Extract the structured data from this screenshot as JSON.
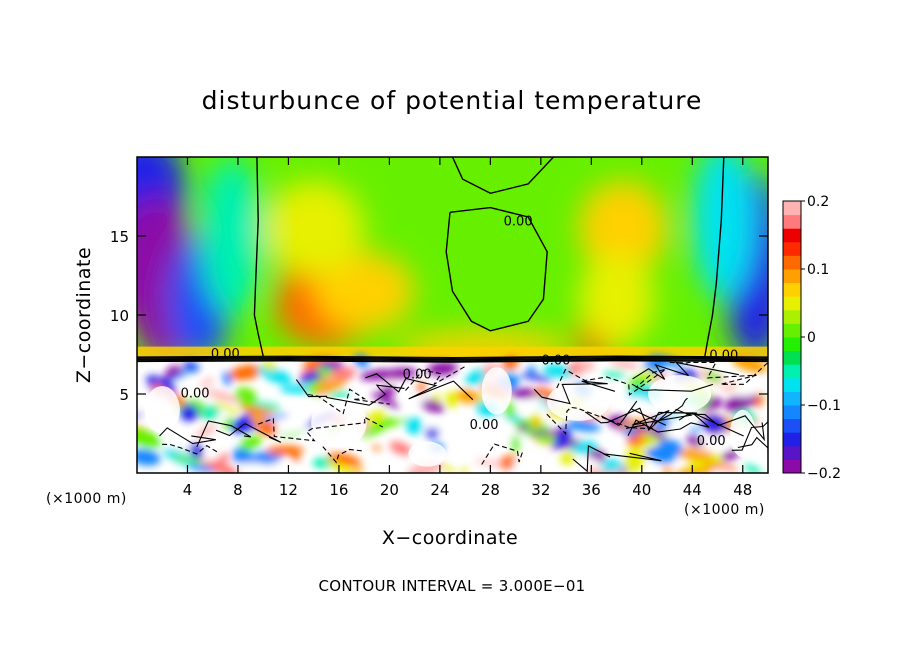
{
  "chart_data": {
    "type": "heatmap",
    "title": "disturbunce of potential temperature",
    "xlabel": "X−coordinate",
    "ylabel": "Z−coordinate",
    "x_unit_left": "(×1000 m)",
    "x_unit_right": "(×1000 m)",
    "footer": "CONTOUR INTERVAL = 3.000E−01",
    "xlim": [
      0,
      50
    ],
    "ylim": [
      0,
      20
    ],
    "x_ticks": [
      4,
      8,
      12,
      16,
      20,
      24,
      28,
      32,
      36,
      40,
      44,
      48
    ],
    "x_tick_labels": [
      "4",
      "8",
      "12",
      "16",
      "20",
      "24",
      "28",
      "32",
      "36",
      "40",
      "44",
      "48"
    ],
    "y_ticks": [
      5,
      10,
      15
    ],
    "y_tick_labels": [
      "5",
      "10",
      "15"
    ],
    "colorbar": {
      "min": -0.2,
      "max": 0.2,
      "ticks": [
        0.2,
        0.1,
        0,
        -0.1,
        -0.2
      ],
      "tick_labels": [
        "0.2",
        "0.1",
        "0",
        "−0.1",
        "−0.2"
      ],
      "colors": [
        "#8c0aa8",
        "#5a14c8",
        "#2020e6",
        "#1a50f5",
        "#1486ff",
        "#10b4ff",
        "#00e2f0",
        "#00f0b0",
        "#00e050",
        "#22f000",
        "#66f000",
        "#aaf000",
        "#e6f000",
        "#ffd000",
        "#ffa000",
        "#ff6a00",
        "#ff2a00",
        "#ee0000",
        "#ff7a7a",
        "#ffb2b2"
      ]
    },
    "contour_labels": [
      {
        "text": "0.00",
        "x": 30.2,
        "z": 15.9
      },
      {
        "text": "0.00",
        "x": 7.0,
        "z": 7.5
      },
      {
        "text": "0.00",
        "x": 22.2,
        "z": 6.2
      },
      {
        "text": "0.00",
        "x": 33.2,
        "z": 7.1
      },
      {
        "text": "0.00",
        "x": 27.5,
        "z": 3.0
      },
      {
        "text": "0.00",
        "x": 46.5,
        "z": 7.4
      },
      {
        "text": "0.00",
        "x": 45.5,
        "z": 2.0
      },
      {
        "text": "0.00",
        "x": 4.6,
        "z": 5.0
      }
    ],
    "regions": {
      "upper_layer_z": [
        7.3,
        20
      ],
      "inversion_z": 7.2,
      "lower_turbulent_z": [
        0,
        7.2
      ],
      "upper_pattern": [
        {
          "x": 0.5,
          "z": 17.5,
          "v": -0.16,
          "rx": 3.5,
          "rz": 4.0
        },
        {
          "x": 1.5,
          "z": 13.0,
          "v": -0.19,
          "rx": 3.5,
          "rz": 4.5
        },
        {
          "x": 2.5,
          "z": 9.0,
          "v": -0.2,
          "rx": 2.5,
          "rz": 2.0
        },
        {
          "x": 5.0,
          "z": 11.0,
          "v": -0.14,
          "rx": 2.5,
          "rz": 4.0
        },
        {
          "x": 7.5,
          "z": 15.0,
          "v": -0.05,
          "rx": 2.5,
          "rz": 5.0
        },
        {
          "x": 49.0,
          "z": 13.0,
          "v": -0.16,
          "rx": 2.5,
          "rz": 6.0
        },
        {
          "x": 46.5,
          "z": 16.0,
          "v": -0.08,
          "rx": 2.5,
          "rz": 5.0
        },
        {
          "x": 14.0,
          "z": 12.5,
          "v": 0.12,
          "rx": 2.5,
          "rz": 2.2
        },
        {
          "x": 15.0,
          "z": 10.5,
          "v": 0.1,
          "rx": 4.0,
          "rz": 2.5
        },
        {
          "x": 18.0,
          "z": 11.5,
          "v": 0.07,
          "rx": 4.0,
          "rz": 2.5
        },
        {
          "x": 14.0,
          "z": 15.5,
          "v": 0.05,
          "rx": 4.0,
          "rz": 3.0
        },
        {
          "x": 38.5,
          "z": 15.5,
          "v": 0.06,
          "rx": 3.5,
          "rz": 3.0
        },
        {
          "x": 36.5,
          "z": 8.6,
          "v": 0.13,
          "rx": 1.6,
          "rz": 1.4
        },
        {
          "x": 38.0,
          "z": 11.0,
          "v": 0.05,
          "rx": 3.0,
          "rz": 3.0
        },
        {
          "x": 27.5,
          "z": 8.0,
          "v": 0.07,
          "rx": 7.0,
          "rz": 1.0
        }
      ]
    }
  }
}
